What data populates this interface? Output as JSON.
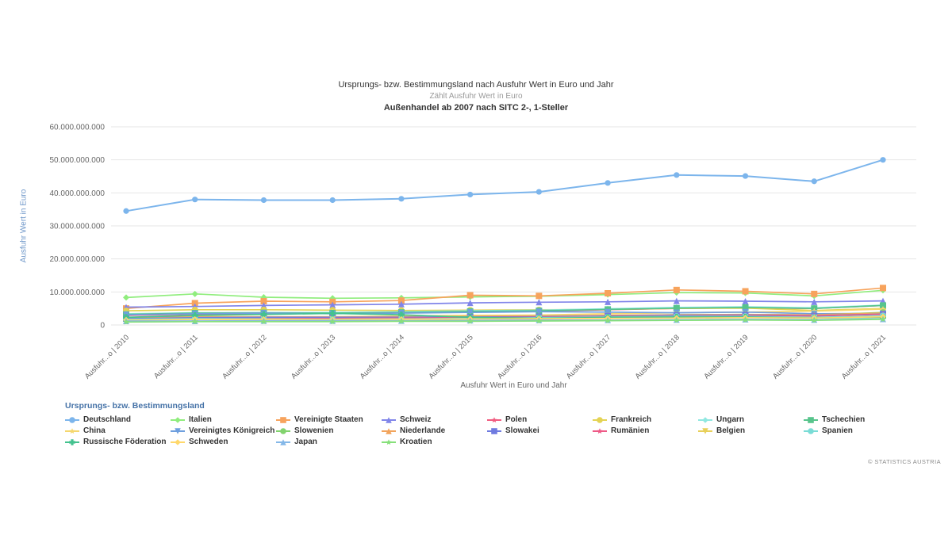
{
  "chart_data": {
    "type": "line",
    "title": "Ursprungs- bzw. Bestimmungsland nach Ausfuhr Wert in Euro und Jahr",
    "subtitle": "Zählt Ausfuhr Wert in Euro",
    "subtitle2": "Außenhandel ab 2007 nach SITC 2-, 1-Steller",
    "ylabel": "Ausfuhr Wert in Euro",
    "xlabel": "Ausfuhr Wert in Euro und Jahr",
    "legend_title": "Ursprungs- bzw. Bestimmungsland",
    "legend_position": "bottom",
    "grid": true,
    "ylim": [
      0,
      60000000000
    ],
    "ytick_step": 10000000000,
    "ytick_labels": [
      "0",
      "10.000.000.000",
      "20.000.000.000",
      "30.000.000.000",
      "40.000.000.000",
      "50.000.000.000",
      "60.000.000.000"
    ],
    "years": [
      2010,
      2011,
      2012,
      2013,
      2014,
      2015,
      2016,
      2017,
      2018,
      2019,
      2020,
      2021
    ],
    "categories": [
      "Ausfuhr...o | 2010",
      "Ausfuhr...o | 2011",
      "Ausfuhr...o | 2012",
      "Ausfuhr...o | 2013",
      "Ausfuhr...o | 2014",
      "Ausfuhr...o | 2015",
      "Ausfuhr...o | 2016",
      "Ausfuhr...o | 2017",
      "Ausfuhr...o | 2018",
      "Ausfuhr...o | 2019",
      "Ausfuhr...o | 2020",
      "Ausfuhr...o | 2021"
    ],
    "series": [
      {
        "name": "Deutschland",
        "color": "#7cb5ec",
        "marker": "circle",
        "values": [
          34500000000,
          38000000000,
          37800000000,
          37800000000,
          38200000000,
          39500000000,
          40300000000,
          43000000000,
          45400000000,
          45100000000,
          43500000000,
          50000000000
        ]
      },
      {
        "name": "Italien",
        "color": "#90ed7d",
        "marker": "diamond",
        "values": [
          8300000000,
          9400000000,
          8400000000,
          8100000000,
          8200000000,
          8500000000,
          8700000000,
          9200000000,
          9800000000,
          9700000000,
          8800000000,
          10500000000
        ]
      },
      {
        "name": "Vereinigte Staaten",
        "color": "#f7a35c",
        "marker": "square",
        "values": [
          5000000000,
          6600000000,
          7200000000,
          7000000000,
          7400000000,
          9000000000,
          8800000000,
          9600000000,
          10600000000,
          10200000000,
          9400000000,
          11200000000
        ]
      },
      {
        "name": "Schweiz",
        "color": "#8085e9",
        "marker": "triangle",
        "values": [
          5400000000,
          5600000000,
          5900000000,
          6100000000,
          6300000000,
          6700000000,
          6900000000,
          7000000000,
          7300000000,
          7200000000,
          7000000000,
          7300000000
        ]
      },
      {
        "name": "Polen",
        "color": "#f15c80",
        "marker": "star",
        "values": [
          2900000000,
          3300000000,
          3400000000,
          3500000000,
          3700000000,
          4000000000,
          4200000000,
          4600000000,
          5000000000,
          5200000000,
          5000000000,
          5900000000
        ]
      },
      {
        "name": "Frankreich",
        "color": "#e4d354",
        "marker": "circle",
        "values": [
          4300000000,
          4600000000,
          4600000000,
          4500000000,
          4400000000,
          4500000000,
          4600000000,
          4700000000,
          5000000000,
          5100000000,
          4400000000,
          5000000000
        ]
      },
      {
        "name": "Ungarn",
        "color": "#91e8e1",
        "marker": "diamond",
        "values": [
          3400000000,
          3700000000,
          3700000000,
          3800000000,
          4000000000,
          4300000000,
          4500000000,
          4900000000,
          5300000000,
          5500000000,
          5200000000,
          6000000000
        ]
      },
      {
        "name": "Tschechien",
        "color": "#57c48c",
        "marker": "square",
        "values": [
          3200000000,
          3600000000,
          3700000000,
          3600000000,
          3800000000,
          4100000000,
          4300000000,
          4700000000,
          5100000000,
          5300000000,
          5000000000,
          5900000000
        ]
      },
      {
        "name": "China",
        "color": "#f5d76e",
        "marker": "star",
        "values": [
          2200000000,
          2600000000,
          2500000000,
          2500000000,
          2700000000,
          2900000000,
          3000000000,
          3400000000,
          3700000000,
          3900000000,
          4200000000,
          4800000000
        ]
      },
      {
        "name": "Vereinigtes Königreich",
        "color": "#6e9fde",
        "marker": "triangle-down",
        "values": [
          3100000000,
          3400000000,
          3600000000,
          3400000000,
          3600000000,
          3800000000,
          4000000000,
          3900000000,
          3700000000,
          3900000000,
          3400000000,
          3500000000
        ]
      },
      {
        "name": "Slowenien",
        "color": "#82d36e",
        "marker": "circle",
        "values": [
          1900000000,
          2100000000,
          2100000000,
          2100000000,
          2200000000,
          2300000000,
          2500000000,
          2800000000,
          3100000000,
          3200000000,
          3000000000,
          3800000000
        ]
      },
      {
        "name": "Niederlande",
        "color": "#f2a45c",
        "marker": "triangle",
        "values": [
          2200000000,
          2400000000,
          2400000000,
          2400000000,
          2500000000,
          2600000000,
          2700000000,
          2900000000,
          3100000000,
          3200000000,
          3100000000,
          3600000000
        ]
      },
      {
        "name": "Slowakei",
        "color": "#6f7be0",
        "marker": "square",
        "values": [
          1900000000,
          2200000000,
          2300000000,
          2300000000,
          2300000000,
          2400000000,
          2500000000,
          2700000000,
          2900000000,
          3000000000,
          2800000000,
          3300000000
        ]
      },
      {
        "name": "Rumänien",
        "color": "#ee5a87",
        "marker": "star",
        "values": [
          1600000000,
          1800000000,
          1900000000,
          2000000000,
          2100000000,
          2200000000,
          2300000000,
          2500000000,
          2700000000,
          2800000000,
          2700000000,
          3200000000
        ]
      },
      {
        "name": "Belgien",
        "color": "#e8d05a",
        "marker": "triangle-down",
        "values": [
          1500000000,
          1700000000,
          1700000000,
          1700000000,
          1800000000,
          1900000000,
          2000000000,
          2100000000,
          2200000000,
          2300000000,
          2200000000,
          2500000000
        ]
      },
      {
        "name": "Spanien",
        "color": "#7adcd6",
        "marker": "circle",
        "values": [
          1700000000,
          1900000000,
          1800000000,
          1700000000,
          1800000000,
          2000000000,
          2200000000,
          2400000000,
          2600000000,
          2600000000,
          2300000000,
          2800000000
        ]
      },
      {
        "name": "Russische Föderation",
        "color": "#44c28f",
        "marker": "cross",
        "values": [
          2300000000,
          2900000000,
          3200000000,
          3500000000,
          3100000000,
          2300000000,
          2000000000,
          2300000000,
          2400000000,
          2400000000,
          2100000000,
          2300000000
        ]
      },
      {
        "name": "Schweden",
        "color": "#ffd86b",
        "marker": "diamond",
        "values": [
          1500000000,
          1700000000,
          1700000000,
          1600000000,
          1700000000,
          1800000000,
          1900000000,
          2000000000,
          2100000000,
          2200000000,
          2100000000,
          2500000000
        ]
      },
      {
        "name": "Japan",
        "color": "#85b8e8",
        "marker": "triangle",
        "values": [
          1200000000,
          1200000000,
          1300000000,
          1300000000,
          1300000000,
          1400000000,
          1500000000,
          1500000000,
          1600000000,
          1700000000,
          1600000000,
          1800000000
        ]
      },
      {
        "name": "Kroatien",
        "color": "#86e07a",
        "marker": "star",
        "values": [
          900000000,
          1000000000,
          1000000000,
          1000000000,
          1100000000,
          1100000000,
          1200000000,
          1300000000,
          1400000000,
          1500000000,
          1400000000,
          1700000000
        ]
      }
    ]
  },
  "footer": {
    "copyright": "© STATISTICS AUSTRIA"
  },
  "colors": {
    "grid": "#e6e6e6",
    "axis_label": "#666666",
    "y_axis_title": "#6d96c8",
    "legend_title": "#4572a7",
    "title": "#333333",
    "subtitle": "#9a9a9a"
  }
}
